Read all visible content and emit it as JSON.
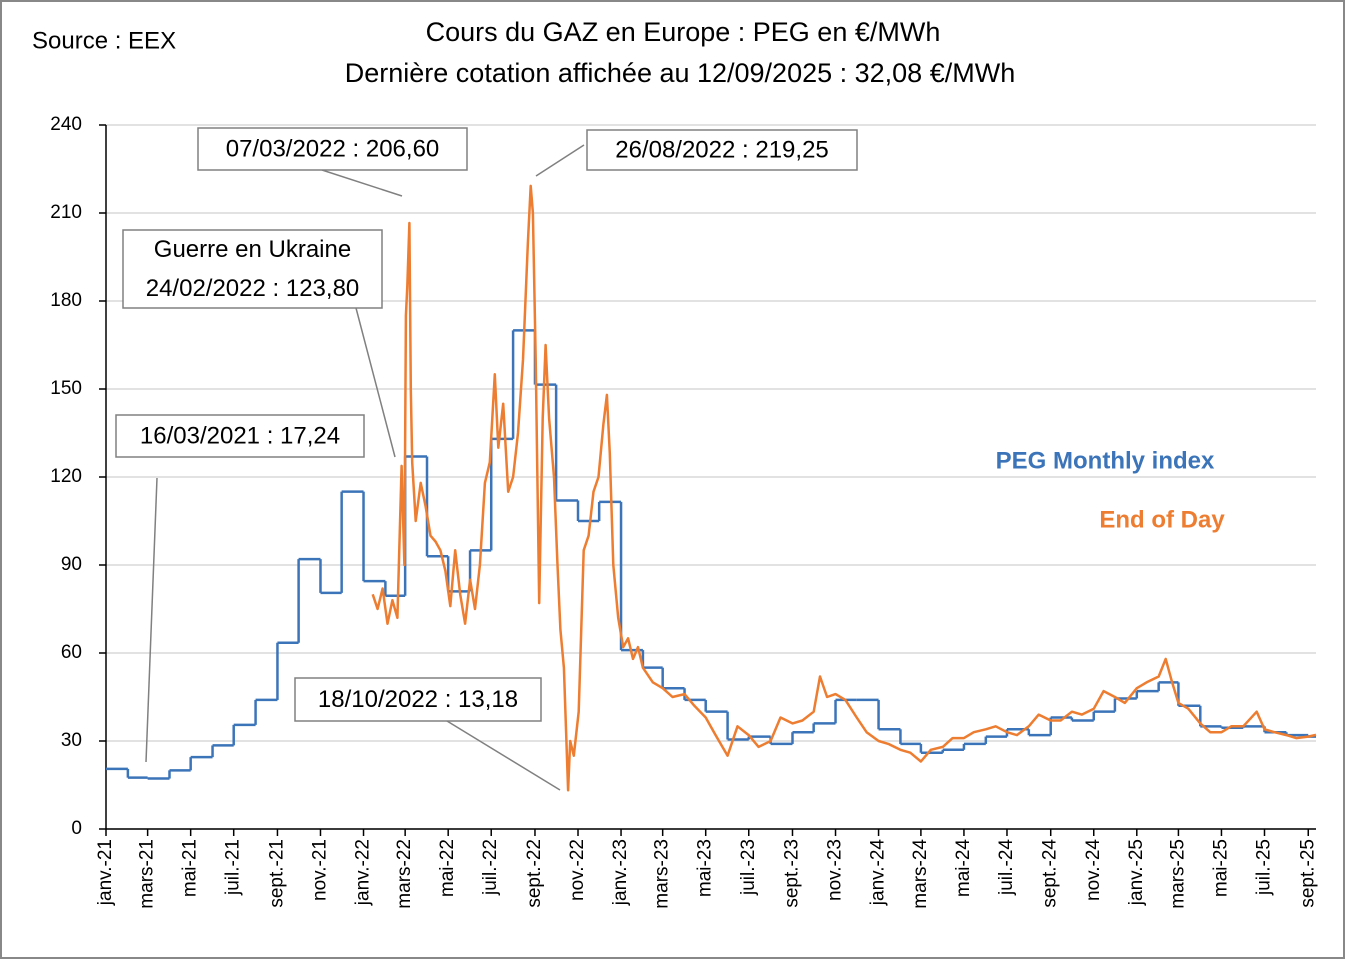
{
  "chart_data": {
    "type": "line",
    "title": "Cours du GAZ en Europe : PEG en €/MWh",
    "subtitle": "Dernière cotation affichée au 12/09/2025 : 32,08 €/MWh",
    "source": "Source : EEX",
    "xlim": [
      "2021-01",
      "2025-09-12"
    ],
    "ylim": [
      0,
      240
    ],
    "yticks": [
      0,
      30,
      60,
      90,
      120,
      150,
      180,
      210,
      240
    ],
    "grid": true,
    "xticks": [
      {
        "value": "2021-01",
        "label": "janv.-21"
      },
      {
        "value": "2021-03",
        "label": "mars-21"
      },
      {
        "value": "2021-05",
        "label": "mai-21"
      },
      {
        "value": "2021-07",
        "label": "juil.-21"
      },
      {
        "value": "2021-09",
        "label": "sept.-21"
      },
      {
        "value": "2021-11",
        "label": "nov.-21"
      },
      {
        "value": "2022-01",
        "label": "janv.-22"
      },
      {
        "value": "2022-03",
        "label": "mars-22"
      },
      {
        "value": "2022-05",
        "label": "mai-22"
      },
      {
        "value": "2022-07",
        "label": "juil.-22"
      },
      {
        "value": "2022-09",
        "label": "sept.-22"
      },
      {
        "value": "2022-11",
        "label": "nov.-22"
      },
      {
        "value": "2023-01",
        "label": "janv.-23"
      },
      {
        "value": "2023-03",
        "label": "mars-23"
      },
      {
        "value": "2023-05",
        "label": "mai-23"
      },
      {
        "value": "2023-07",
        "label": "juil.-23"
      },
      {
        "value": "2023-09",
        "label": "sept.-23"
      },
      {
        "value": "2023-11",
        "label": "nov.-23"
      },
      {
        "value": "2024-01",
        "label": "janv.-24"
      },
      {
        "value": "2024-03",
        "label": "mars-24"
      },
      {
        "value": "2024-05",
        "label": "mai-24"
      },
      {
        "value": "2024-07",
        "label": "juil.-24"
      },
      {
        "value": "2024-09",
        "label": "sept.-24"
      },
      {
        "value": "2024-11",
        "label": "nov.-24"
      },
      {
        "value": "2025-01",
        "label": "janv.-25"
      },
      {
        "value": "2025-03",
        "label": "mars-25"
      },
      {
        "value": "2025-05",
        "label": "mai-25"
      },
      {
        "value": "2025-07",
        "label": "juil.-25"
      },
      {
        "value": "2025-09",
        "label": "sept.-25"
      }
    ],
    "series": [
      {
        "name": "PEG Monthly index",
        "color": "#3b74b8",
        "step": true,
        "x": [
          "2021-01",
          "2021-02",
          "2021-03",
          "2021-04",
          "2021-05",
          "2021-06",
          "2021-07",
          "2021-08",
          "2021-09",
          "2021-10",
          "2021-11",
          "2021-12",
          "2022-01",
          "2022-02",
          "2022-03",
          "2022-04",
          "2022-05",
          "2022-06",
          "2022-07",
          "2022-08",
          "2022-09",
          "2022-10",
          "2022-11",
          "2022-12",
          "2023-01",
          "2023-02",
          "2023-03",
          "2023-04",
          "2023-05",
          "2023-06",
          "2023-07",
          "2023-08",
          "2023-09",
          "2023-10",
          "2023-11",
          "2023-12",
          "2024-01",
          "2024-02",
          "2024-03",
          "2024-04",
          "2024-05",
          "2024-06",
          "2024-07",
          "2024-08",
          "2024-09",
          "2024-10",
          "2024-11",
          "2024-12",
          "2025-01",
          "2025-02",
          "2025-03",
          "2025-04",
          "2025-05",
          "2025-06",
          "2025-07",
          "2025-08",
          "2025-09"
        ],
        "values": [
          20.5,
          17.5,
          17.2,
          20,
          24.5,
          28.5,
          35.5,
          44,
          63.5,
          92,
          80.5,
          115,
          84.5,
          79.5,
          127,
          93,
          81,
          95,
          133,
          170,
          151.5,
          112,
          105,
          111.5,
          61,
          55,
          48,
          44,
          40,
          30.5,
          31.5,
          29,
          33,
          36,
          44,
          44,
          34,
          29,
          26,
          27,
          29,
          31.5,
          34,
          32,
          38,
          37,
          40,
          44.5,
          47,
          50,
          42,
          35,
          34.5,
          35,
          33,
          32,
          31.5
        ]
      },
      {
        "name": "End of Day",
        "color": "#ed7d31",
        "x": [
          "2022-01-14",
          "2022-01-21",
          "2022-01-28",
          "2022-02-04",
          "2022-02-11",
          "2022-02-18",
          "2022-02-24",
          "2022-02-28",
          "2022-03-02",
          "2022-03-04",
          "2022-03-07",
          "2022-03-09",
          "2022-03-11",
          "2022-03-16",
          "2022-03-23",
          "2022-03-30",
          "2022-04-06",
          "2022-04-13",
          "2022-04-20",
          "2022-04-27",
          "2022-05-04",
          "2022-05-11",
          "2022-05-18",
          "2022-05-25",
          "2022-06-01",
          "2022-06-08",
          "2022-06-15",
          "2022-06-22",
          "2022-06-29",
          "2022-07-06",
          "2022-07-11",
          "2022-07-18",
          "2022-07-25",
          "2022-08-01",
          "2022-08-08",
          "2022-08-15",
          "2022-08-22",
          "2022-08-26",
          "2022-08-29",
          "2022-09-02",
          "2022-09-07",
          "2022-09-12",
          "2022-09-16",
          "2022-09-21",
          "2022-09-28",
          "2022-10-03",
          "2022-10-07",
          "2022-10-12",
          "2022-10-18",
          "2022-10-21",
          "2022-10-26",
          "2022-11-02",
          "2022-11-09",
          "2022-11-16",
          "2022-11-23",
          "2022-11-30",
          "2022-12-07",
          "2022-12-12",
          "2022-12-16",
          "2022-12-21",
          "2022-12-28",
          "2023-01-04",
          "2023-01-11",
          "2023-01-18",
          "2023-01-25",
          "2023-02-01",
          "2023-02-15",
          "2023-03-01",
          "2023-03-15",
          "2023-04-01",
          "2023-04-15",
          "2023-05-01",
          "2023-05-15",
          "2023-06-01",
          "2023-06-15",
          "2023-07-01",
          "2023-07-15",
          "2023-08-01",
          "2023-08-15",
          "2023-09-01",
          "2023-09-15",
          "2023-10-01",
          "2023-10-10",
          "2023-10-20",
          "2023-11-01",
          "2023-11-15",
          "2023-12-01",
          "2023-12-15",
          "2024-01-01",
          "2024-01-15",
          "2024-02-01",
          "2024-02-15",
          "2024-03-01",
          "2024-03-15",
          "2024-04-01",
          "2024-04-15",
          "2024-05-01",
          "2024-05-15",
          "2024-06-01",
          "2024-06-15",
          "2024-07-01",
          "2024-07-15",
          "2024-08-01",
          "2024-08-15",
          "2024-09-01",
          "2024-09-15",
          "2024-10-01",
          "2024-10-15",
          "2024-11-01",
          "2024-11-15",
          "2024-12-01",
          "2024-12-15",
          "2025-01-01",
          "2025-01-15",
          "2025-02-01",
          "2025-02-11",
          "2025-02-20",
          "2025-03-01",
          "2025-03-15",
          "2025-04-01",
          "2025-04-15",
          "2025-05-01",
          "2025-05-15",
          "2025-06-01",
          "2025-06-20",
          "2025-07-01",
          "2025-07-15",
          "2025-08-01",
          "2025-08-15",
          "2025-09-01",
          "2025-09-12"
        ],
        "values": [
          80,
          75,
          82,
          70,
          78,
          72,
          123.8,
          90,
          175,
          185,
          206.6,
          150,
          125,
          105,
          118,
          110,
          100,
          98,
          95,
          88,
          76,
          95,
          80,
          70,
          85,
          75,
          90,
          118,
          125,
          155,
          130,
          145,
          115,
          120,
          135,
          160,
          200,
          219.25,
          210,
          160,
          77,
          140,
          165,
          140,
          120,
          90,
          68,
          55,
          13.18,
          30,
          25,
          40,
          95,
          100,
          115,
          120,
          138,
          148,
          128,
          90,
          72,
          62,
          65,
          58,
          62,
          55,
          50,
          48,
          45,
          46,
          42,
          38,
          32,
          25,
          35,
          32,
          28,
          30,
          38,
          36,
          37,
          40,
          52,
          45,
          46,
          44,
          38,
          33,
          30,
          29,
          27,
          26,
          23,
          27,
          28,
          31,
          31,
          33,
          34,
          35,
          33,
          32,
          35,
          39,
          37,
          37,
          40,
          39,
          41,
          47,
          45,
          43,
          48,
          50,
          52,
          58,
          50,
          43,
          41,
          36,
          33,
          33,
          35,
          35,
          40,
          34,
          33,
          32,
          31,
          31.5,
          32.08
        ]
      }
    ],
    "annotations": [
      {
        "lines": [
          "16/03/2021 : 17,24"
        ]
      },
      {
        "lines": [
          "Guerre en Ukraine",
          "24/02/2022 : 123,80"
        ]
      },
      {
        "lines": [
          "07/03/2022 : 206,60"
        ]
      },
      {
        "lines": [
          "26/08/2022 : 219,25"
        ]
      },
      {
        "lines": [
          "18/10/2022 : 13,18"
        ]
      }
    ]
  }
}
